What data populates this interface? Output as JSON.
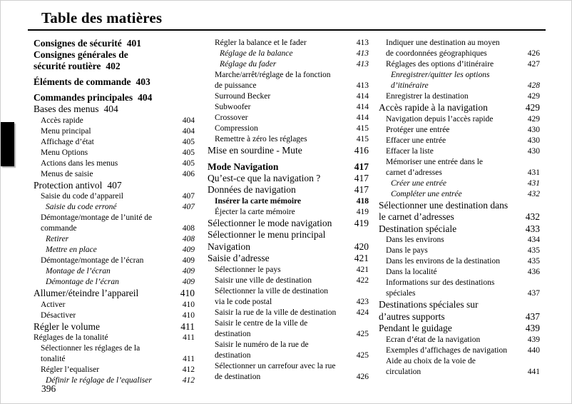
{
  "header": {
    "title": "Table des matières"
  },
  "footer": {
    "page_number": "396"
  },
  "toc": {
    "columns": [
      [
        {
          "level": "chapter",
          "numpos": "inline",
          "text": "Consignes de sécurité",
          "num": "401"
        },
        {
          "level": "chapter",
          "numpos": "inline",
          "text": "Consignes générales de\nsécurité routière",
          "num": "402"
        },
        {
          "level": "chapter",
          "numpos": "inline",
          "gap": true,
          "text": "Éléments de commande",
          "num": "403"
        },
        {
          "level": "chapter",
          "numpos": "inline",
          "gap": true,
          "text": "Commandes principales",
          "num": "404"
        },
        {
          "level": "section",
          "numpos": "inline",
          "text": "Bases des menus",
          "num": "404"
        },
        {
          "level": "sub",
          "numpos": "right",
          "text": "Accès rapide",
          "num": "404"
        },
        {
          "level": "sub",
          "numpos": "right",
          "text": "Menu principal",
          "num": "404"
        },
        {
          "level": "sub",
          "numpos": "right",
          "text": "Affichage d’état",
          "num": "405"
        },
        {
          "level": "sub",
          "numpos": "right",
          "text": "Menu Options",
          "num": "405"
        },
        {
          "level": "sub",
          "numpos": "right",
          "text": "Actions dans les menus",
          "num": "405"
        },
        {
          "level": "sub",
          "numpos": "right",
          "text": "Menus de saisie",
          "num": "406"
        },
        {
          "level": "section",
          "numpos": "inline",
          "text": "Protection antivol",
          "num": "407"
        },
        {
          "level": "sub",
          "numpos": "right",
          "text": "Saisie du code d’appareil",
          "num": "407"
        },
        {
          "level": "italic",
          "numpos": "right",
          "text": "Saisie du code erroné",
          "num": "407"
        },
        {
          "level": "sub",
          "numpos": "right",
          "text": "Démontage/montage de l’unité de\ncommande",
          "num": "408"
        },
        {
          "level": "italic",
          "numpos": "right",
          "text": "Retirer",
          "num": "408"
        },
        {
          "level": "italic",
          "numpos": "right",
          "text": "Mettre en place",
          "num": "409"
        },
        {
          "level": "sub",
          "numpos": "right",
          "text": "Démontage/montage de l’écran",
          "num": "409"
        },
        {
          "level": "italic",
          "numpos": "right",
          "text": "Montage de l’écran",
          "num": "409"
        },
        {
          "level": "italic",
          "numpos": "right",
          "text": "Démontage de l’écran",
          "num": "409"
        },
        {
          "level": "section",
          "numpos": "right",
          "text": "Allumer/éteindre l’appareil",
          "num": "410"
        },
        {
          "level": "sub",
          "numpos": "right",
          "text": "Activer",
          "num": "410"
        },
        {
          "level": "sub",
          "numpos": "right",
          "text": "Désactiver",
          "num": "410"
        },
        {
          "level": "section",
          "numpos": "right",
          "text": "Régler le volume",
          "num": "411"
        },
        {
          "level": "sub0",
          "numpos": "right",
          "text": "Réglages de la tonalité",
          "num": "411"
        },
        {
          "level": "sub",
          "numpos": "right",
          "text": "Sélectionner les réglages de la\ntonalité",
          "num": "411"
        },
        {
          "level": "sub",
          "numpos": "right",
          "text": "Régler l’equaliser",
          "num": "412"
        },
        {
          "level": "italic",
          "numpos": "right",
          "text": "Définir le réglage de l’equaliser",
          "num": "412"
        }
      ],
      [
        {
          "level": "sub",
          "numpos": "right",
          "text": "Régler la balance et le fader",
          "num": "413"
        },
        {
          "level": "italic",
          "numpos": "right",
          "text": "Réglage de la balance",
          "num": "413"
        },
        {
          "level": "italic",
          "numpos": "right",
          "text": "Réglage du fader",
          "num": "413"
        },
        {
          "level": "sub",
          "numpos": "right",
          "text": "Marche/arrêt/réglage de la fonction\nde puissance",
          "num": "413"
        },
        {
          "level": "sub",
          "numpos": "right",
          "text": "Surround Becker",
          "num": "414"
        },
        {
          "level": "sub",
          "numpos": "right",
          "text": "Subwoofer",
          "num": "414"
        },
        {
          "level": "sub",
          "numpos": "right",
          "text": "Crossover",
          "num": "414"
        },
        {
          "level": "sub",
          "numpos": "right",
          "text": "Compression",
          "num": "415"
        },
        {
          "level": "sub",
          "numpos": "right",
          "text": "Remettre à zéro les réglages",
          "num": "415"
        },
        {
          "level": "section",
          "numpos": "right",
          "text": "Mise en sourdine - Mute",
          "num": "416"
        },
        {
          "level": "chapter",
          "numpos": "right",
          "gap": true,
          "text": "Mode Navigation",
          "num": "417"
        },
        {
          "level": "section",
          "numpos": "right",
          "text": "Qu’est-ce que la navigation ?",
          "num": "417"
        },
        {
          "level": "section",
          "numpos": "right",
          "text": "Données de navigation",
          "num": "417"
        },
        {
          "level": "subbold",
          "numpos": "right",
          "text": "Insérer la carte mémoire",
          "num": "418"
        },
        {
          "level": "sub",
          "numpos": "right",
          "text": "Éjecter la carte mémoire",
          "num": "419"
        },
        {
          "level": "section",
          "numpos": "right",
          "text": "Sélectionner le mode navigation",
          "num": "419"
        },
        {
          "level": "section",
          "numpos": "right",
          "text": "Sélectionner le menu principal\nNavigation",
          "num": "420"
        },
        {
          "level": "section",
          "numpos": "right",
          "text": "Saisie d’adresse",
          "num": "421"
        },
        {
          "level": "sub",
          "numpos": "right",
          "text": "Sélectionner le pays",
          "num": "421"
        },
        {
          "level": "sub",
          "numpos": "right",
          "text": "Saisir une ville de destination",
          "num": "422"
        },
        {
          "level": "sub",
          "numpos": "right",
          "text": "Sélectionner la ville de destination\nvia le code postal",
          "num": "423"
        },
        {
          "level": "sub",
          "numpos": "right",
          "text": "Saisir la rue de la ville de destination",
          "num": "424"
        },
        {
          "level": "sub",
          "numpos": "right",
          "text": "Saisir le centre de la ville de\ndestination",
          "num": "425"
        },
        {
          "level": "sub",
          "numpos": "right",
          "text": "Saisir le numéro de la rue de\ndestination",
          "num": "425"
        },
        {
          "level": "sub",
          "numpos": "right",
          "text": "Sélectionner un carrefour avec la rue\nde destination",
          "num": "426"
        }
      ],
      [
        {
          "level": "sub",
          "numpos": "right",
          "text": "Indiquer une destination au moyen\nde coordonnées géographiques",
          "num": "426"
        },
        {
          "level": "sub",
          "numpos": "right",
          "text": "Réglages des options d’itinéraire",
          "num": "427"
        },
        {
          "level": "italic",
          "numpos": "right",
          "text": "Enregistrer/quitter les options\nd’itinéraire",
          "num": "428"
        },
        {
          "level": "sub",
          "numpos": "right",
          "text": "Enregistrer la destination",
          "num": "429"
        },
        {
          "level": "section",
          "numpos": "right",
          "text": "Accès rapide à la navigation",
          "num": "429"
        },
        {
          "level": "sub",
          "numpos": "right",
          "text": "Navigation depuis l’accès rapide",
          "num": "429"
        },
        {
          "level": "sub",
          "numpos": "right",
          "text": "Protéger une entrée",
          "num": "430"
        },
        {
          "level": "sub",
          "numpos": "right",
          "text": "Effacer une entrée",
          "num": "430"
        },
        {
          "level": "sub",
          "numpos": "right",
          "text": "Effacer la liste",
          "num": "430"
        },
        {
          "level": "sub",
          "numpos": "right",
          "text": "Mémoriser une entrée dans le\ncarnet d’adresses",
          "num": "431"
        },
        {
          "level": "italic",
          "numpos": "right",
          "text": "Créer une entrée",
          "num": "431"
        },
        {
          "level": "italic",
          "numpos": "right",
          "text": "Compléter une entrée",
          "num": "432"
        },
        {
          "level": "section",
          "numpos": "right",
          "text": "Sélectionner une destination dans\nle carnet d’adresses",
          "num": "432"
        },
        {
          "level": "section",
          "numpos": "right",
          "text": "Destination spéciale",
          "num": "433"
        },
        {
          "level": "sub",
          "numpos": "right",
          "text": "Dans les environs",
          "num": "434"
        },
        {
          "level": "sub",
          "numpos": "right",
          "text": "Dans le pays",
          "num": "435"
        },
        {
          "level": "sub",
          "numpos": "right",
          "text": "Dans les environs de la destination",
          "num": "435"
        },
        {
          "level": "sub",
          "numpos": "right",
          "text": "Dans la localité",
          "num": "436"
        },
        {
          "level": "sub",
          "numpos": "right",
          "text": "Informations sur des destinations\nspéciales",
          "num": "437"
        },
        {
          "level": "section",
          "numpos": "right",
          "text": "Destinations spéciales sur\nd’autres supports",
          "num": "437"
        },
        {
          "level": "section",
          "numpos": "right",
          "text": "Pendant le guidage",
          "num": "439"
        },
        {
          "level": "sub",
          "numpos": "right",
          "text": "Ecran d’état de la navigation",
          "num": "439"
        },
        {
          "level": "sub",
          "numpos": "right",
          "text": "Exemples d’affichages de navigation",
          "num": "440"
        },
        {
          "level": "sub",
          "numpos": "right",
          "text": "Aide au choix de la voie de\ncirculation",
          "num": "441"
        }
      ]
    ]
  }
}
